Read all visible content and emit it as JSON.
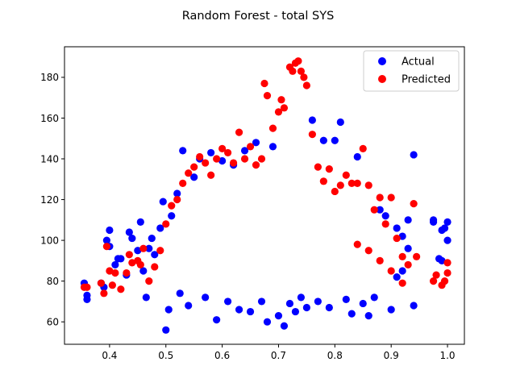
{
  "chart_data": {
    "type": "scatter",
    "title": "Random Forest - total SYS",
    "xlabel": "",
    "ylabel": "",
    "xlim": [
      0.32,
      1.03
    ],
    "ylim": [
      49,
      195
    ],
    "x_ticks": [
      0.4,
      0.5,
      0.6,
      0.7,
      0.8,
      0.9,
      1.0
    ],
    "x_tick_labels": [
      "0.4",
      "0.5",
      "0.6",
      "0.7",
      "0.8",
      "0.9",
      "1.0"
    ],
    "y_ticks": [
      60,
      80,
      100,
      120,
      140,
      160,
      180
    ],
    "y_tick_labels": [
      "60",
      "80",
      "100",
      "120",
      "140",
      "160",
      "180"
    ],
    "grid": false,
    "legend_position": "top-right",
    "series": [
      {
        "name": "Actual",
        "color": "#0000ff",
        "points": [
          [
            0.355,
            79
          ],
          [
            0.36,
            73
          ],
          [
            0.36,
            71
          ],
          [
            0.385,
            79
          ],
          [
            0.39,
            77
          ],
          [
            0.395,
            100
          ],
          [
            0.4,
            105
          ],
          [
            0.4,
            97
          ],
          [
            0.41,
            88
          ],
          [
            0.415,
            91
          ],
          [
            0.42,
            91
          ],
          [
            0.43,
            83
          ],
          [
            0.435,
            104
          ],
          [
            0.44,
            101
          ],
          [
            0.45,
            95
          ],
          [
            0.455,
            109
          ],
          [
            0.46,
            85
          ],
          [
            0.465,
            72
          ],
          [
            0.47,
            96
          ],
          [
            0.475,
            101
          ],
          [
            0.48,
            93
          ],
          [
            0.49,
            106
          ],
          [
            0.495,
            119
          ],
          [
            0.5,
            56
          ],
          [
            0.505,
            66
          ],
          [
            0.51,
            112
          ],
          [
            0.52,
            123
          ],
          [
            0.525,
            74
          ],
          [
            0.53,
            144
          ],
          [
            0.54,
            68
          ],
          [
            0.55,
            131
          ],
          [
            0.56,
            140
          ],
          [
            0.57,
            72
          ],
          [
            0.58,
            143
          ],
          [
            0.59,
            61
          ],
          [
            0.6,
            139
          ],
          [
            0.61,
            70
          ],
          [
            0.62,
            137
          ],
          [
            0.63,
            66
          ],
          [
            0.64,
            144
          ],
          [
            0.65,
            65
          ],
          [
            0.66,
            148
          ],
          [
            0.67,
            70
          ],
          [
            0.68,
            60
          ],
          [
            0.69,
            146
          ],
          [
            0.7,
            63
          ],
          [
            0.71,
            58
          ],
          [
            0.72,
            69
          ],
          [
            0.73,
            65
          ],
          [
            0.74,
            72
          ],
          [
            0.75,
            67
          ],
          [
            0.76,
            159
          ],
          [
            0.77,
            70
          ],
          [
            0.78,
            149
          ],
          [
            0.79,
            67
          ],
          [
            0.8,
            149
          ],
          [
            0.81,
            158
          ],
          [
            0.82,
            71
          ],
          [
            0.83,
            64
          ],
          [
            0.84,
            141
          ],
          [
            0.85,
            69
          ],
          [
            0.86,
            63
          ],
          [
            0.87,
            72
          ],
          [
            0.88,
            115
          ],
          [
            0.89,
            112
          ],
          [
            0.9,
            66
          ],
          [
            0.91,
            106
          ],
          [
            0.92,
            102
          ],
          [
            0.93,
            110
          ],
          [
            0.94,
            142
          ],
          [
            0.94,
            68
          ],
          [
            0.975,
            109
          ],
          [
            0.985,
            91
          ],
          [
            0.995,
            106
          ],
          [
            1.0,
            109
          ],
          [
            1.0,
            100
          ],
          [
            0.99,
            90
          ],
          [
            0.99,
            105
          ],
          [
            0.975,
            110
          ],
          [
            0.93,
            96
          ],
          [
            0.92,
            85
          ],
          [
            0.91,
            82
          ]
        ]
      },
      {
        "name": "Predicted",
        "color": "#ff0000",
        "points": [
          [
            0.355,
            77
          ],
          [
            0.36,
            77
          ],
          [
            0.385,
            79
          ],
          [
            0.39,
            74
          ],
          [
            0.395,
            97
          ],
          [
            0.4,
            85
          ],
          [
            0.405,
            78
          ],
          [
            0.41,
            84
          ],
          [
            0.42,
            76
          ],
          [
            0.43,
            84
          ],
          [
            0.435,
            93
          ],
          [
            0.44,
            89
          ],
          [
            0.45,
            90
          ],
          [
            0.455,
            88
          ],
          [
            0.46,
            96
          ],
          [
            0.47,
            80
          ],
          [
            0.48,
            87
          ],
          [
            0.49,
            95
          ],
          [
            0.5,
            108
          ],
          [
            0.51,
            117
          ],
          [
            0.52,
            120
          ],
          [
            0.53,
            128
          ],
          [
            0.54,
            133
          ],
          [
            0.55,
            136
          ],
          [
            0.56,
            141
          ],
          [
            0.57,
            138
          ],
          [
            0.58,
            132
          ],
          [
            0.59,
            140
          ],
          [
            0.6,
            145
          ],
          [
            0.61,
            143
          ],
          [
            0.62,
            138
          ],
          [
            0.63,
            153
          ],
          [
            0.64,
            140
          ],
          [
            0.65,
            146
          ],
          [
            0.66,
            137
          ],
          [
            0.67,
            140
          ],
          [
            0.675,
            177
          ],
          [
            0.68,
            171
          ],
          [
            0.69,
            155
          ],
          [
            0.7,
            163
          ],
          [
            0.705,
            169
          ],
          [
            0.71,
            165
          ],
          [
            0.72,
            185
          ],
          [
            0.725,
            183
          ],
          [
            0.73,
            187
          ],
          [
            0.735,
            188
          ],
          [
            0.74,
            183
          ],
          [
            0.745,
            180
          ],
          [
            0.75,
            176
          ],
          [
            0.76,
            152
          ],
          [
            0.77,
            136
          ],
          [
            0.78,
            129
          ],
          [
            0.79,
            135
          ],
          [
            0.8,
            124
          ],
          [
            0.81,
            127
          ],
          [
            0.82,
            132
          ],
          [
            0.83,
            128
          ],
          [
            0.84,
            128
          ],
          [
            0.85,
            145
          ],
          [
            0.86,
            127
          ],
          [
            0.87,
            115
          ],
          [
            0.88,
            121
          ],
          [
            0.89,
            108
          ],
          [
            0.9,
            121
          ],
          [
            0.91,
            101
          ],
          [
            0.92,
            92
          ],
          [
            0.93,
            88
          ],
          [
            0.94,
            118
          ],
          [
            0.945,
            92
          ],
          [
            0.975,
            80
          ],
          [
            0.98,
            83
          ],
          [
            0.99,
            78
          ],
          [
            0.995,
            80
          ],
          [
            1.0,
            89
          ],
          [
            1.0,
            84
          ],
          [
            0.92,
            79
          ],
          [
            0.9,
            85
          ],
          [
            0.88,
            90
          ],
          [
            0.86,
            95
          ],
          [
            0.84,
            98
          ]
        ]
      }
    ]
  }
}
